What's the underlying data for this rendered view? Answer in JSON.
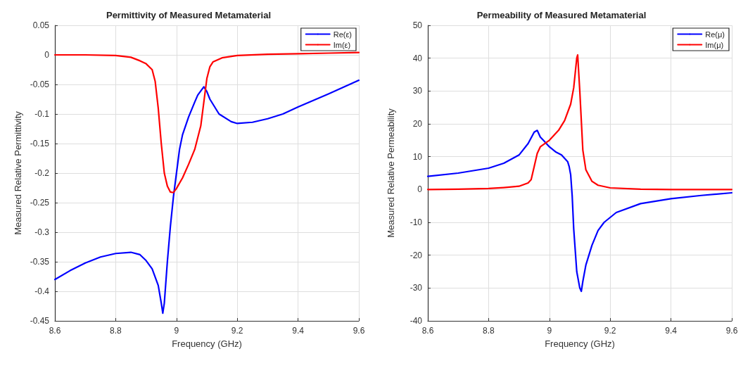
{
  "chart_data": [
    {
      "type": "line",
      "title": "Permittivity of Measured Metamaterial",
      "xlabel": "Frequency (GHz)",
      "ylabel": "Measured Relative Permittivity",
      "xlim": [
        8.6,
        9.6
      ],
      "xticks": [
        8.6,
        8.8,
        9,
        9.2,
        9.4,
        9.6
      ],
      "ylim": [
        -0.45,
        0.05
      ],
      "yticks": [
        0.05,
        0,
        -0.05,
        -0.1,
        -0.15,
        -0.2,
        -0.25,
        -0.3,
        -0.35,
        -0.4,
        -0.45
      ],
      "grid": true,
      "legend": "top right",
      "marker": "none",
      "series": [
        {
          "name": "Re(ε)",
          "color": "#0000ff",
          "x": [
            8.6,
            8.65,
            8.7,
            8.75,
            8.8,
            8.85,
            8.88,
            8.9,
            8.92,
            8.94,
            8.95,
            8.955,
            8.96,
            8.97,
            8.98,
            8.99,
            9.0,
            9.01,
            9.02,
            9.04,
            9.06,
            9.07,
            9.09,
            9.1,
            9.11,
            9.14,
            9.18,
            9.2,
            9.25,
            9.3,
            9.35,
            9.4,
            9.5,
            9.6
          ],
          "values": [
            -0.38,
            -0.365,
            -0.352,
            -0.342,
            -0.336,
            -0.334,
            -0.338,
            -0.348,
            -0.362,
            -0.39,
            -0.42,
            -0.437,
            -0.42,
            -0.35,
            -0.29,
            -0.24,
            -0.2,
            -0.16,
            -0.135,
            -0.105,
            -0.08,
            -0.068,
            -0.054,
            -0.062,
            -0.075,
            -0.1,
            -0.113,
            -0.116,
            -0.114,
            -0.108,
            -0.1,
            -0.088,
            -0.066,
            -0.043
          ]
        },
        {
          "name": "Im(ε)",
          "color": "#ff0000",
          "x": [
            8.6,
            8.7,
            8.8,
            8.85,
            8.88,
            8.9,
            8.92,
            8.93,
            8.94,
            8.95,
            8.96,
            8.97,
            8.98,
            8.99,
            9.0,
            9.02,
            9.04,
            9.06,
            9.08,
            9.09,
            9.1,
            9.11,
            9.12,
            9.15,
            9.2,
            9.3,
            9.4,
            9.5,
            9.6
          ],
          "values": [
            0,
            0,
            -0.001,
            -0.004,
            -0.01,
            -0.015,
            -0.025,
            -0.045,
            -0.09,
            -0.15,
            -0.2,
            -0.222,
            -0.232,
            -0.233,
            -0.226,
            -0.208,
            -0.185,
            -0.16,
            -0.12,
            -0.08,
            -0.04,
            -0.02,
            -0.012,
            -0.005,
            -0.001,
            0.001,
            0.002,
            0.003,
            0.004
          ]
        }
      ]
    },
    {
      "type": "line",
      "title": "Permeability of Measured Metamaterial",
      "xlabel": "Frequency (GHz)",
      "ylabel": "Measured Relative Permeability",
      "xlim": [
        8.6,
        9.6
      ],
      "xticks": [
        8.6,
        8.8,
        9,
        9.2,
        9.4,
        9.6
      ],
      "ylim": [
        -40,
        50
      ],
      "yticks": [
        -40,
        -30,
        -20,
        -10,
        0,
        10,
        20,
        30,
        40,
        50
      ],
      "grid": true,
      "legend": "top right",
      "marker": "none",
      "series": [
        {
          "name": "Re(μ)",
          "color": "#0000ff",
          "x": [
            8.6,
            8.7,
            8.8,
            8.85,
            8.9,
            8.93,
            8.95,
            8.96,
            8.97,
            8.98,
            9.0,
            9.02,
            9.04,
            9.06,
            9.065,
            9.07,
            9.075,
            9.08,
            9.09,
            9.1,
            9.105,
            9.11,
            9.12,
            9.14,
            9.16,
            9.18,
            9.22,
            9.3,
            9.4,
            9.5,
            9.6
          ],
          "values": [
            4,
            5,
            6.5,
            8,
            10.5,
            14,
            17.5,
            18,
            16,
            15,
            13,
            11.5,
            10.5,
            8.5,
            7,
            4.5,
            -2,
            -12,
            -25,
            -30,
            -31,
            -28,
            -23,
            -17,
            -12.5,
            -10,
            -7,
            -4.3,
            -2.8,
            -1.8,
            -1
          ]
        },
        {
          "name": "Im(μ)",
          "color": "#ff0000",
          "x": [
            8.6,
            8.7,
            8.8,
            8.85,
            8.9,
            8.93,
            8.94,
            8.95,
            8.96,
            8.97,
            9.0,
            9.03,
            9.05,
            9.07,
            9.08,
            9.09,
            9.093,
            9.1,
            9.11,
            9.12,
            9.14,
            9.16,
            9.2,
            9.3,
            9.4,
            9.6
          ],
          "values": [
            0,
            0.1,
            0.3,
            0.6,
            1,
            2,
            3,
            7,
            11,
            13,
            15,
            18,
            21,
            26,
            31,
            40,
            41,
            30,
            12,
            6,
            2.5,
            1.3,
            0.5,
            0.1,
            0,
            0
          ]
        }
      ]
    }
  ]
}
